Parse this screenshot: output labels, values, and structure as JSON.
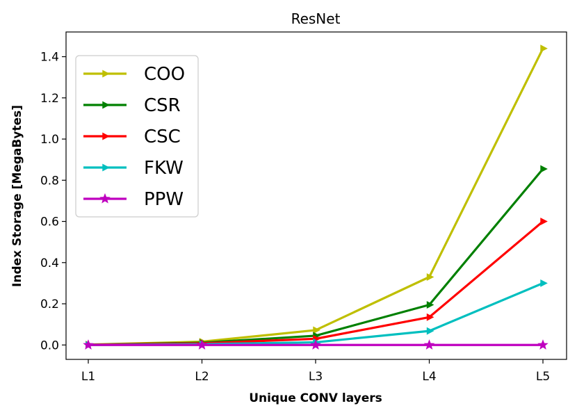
{
  "chart_data": {
    "type": "line",
    "title": "ResNet",
    "xlabel": "Unique CONV layers",
    "ylabel": "Index Storage [MegaBytes]",
    "categories": [
      "L1",
      "L2",
      "L3",
      "L4",
      "L5"
    ],
    "ylim": [
      -0.07,
      1.52
    ],
    "yticks": [
      0.0,
      0.2,
      0.4,
      0.6,
      0.8,
      1.0,
      1.2,
      1.4
    ],
    "ytick_labels": [
      "0.0",
      "0.2",
      "0.4",
      "0.6",
      "0.8",
      "1.0",
      "1.2",
      "1.4"
    ],
    "legend_position": "upper-left",
    "series": [
      {
        "name": "COO",
        "color": "#bfbf00",
        "marker": "triangle-right",
        "values": [
          0.002,
          0.016,
          0.072,
          0.33,
          1.44
        ]
      },
      {
        "name": "CSR",
        "color": "#008000",
        "marker": "triangle-right",
        "values": [
          0.001,
          0.011,
          0.045,
          0.195,
          0.855
        ]
      },
      {
        "name": "CSC",
        "color": "#ff0000",
        "marker": "triangle-right",
        "values": [
          0.001,
          0.008,
          0.03,
          0.135,
          0.6
        ]
      },
      {
        "name": "FKW",
        "color": "#00bfbf",
        "marker": "triangle-right",
        "values": [
          0.0,
          0.004,
          0.013,
          0.068,
          0.3
        ]
      },
      {
        "name": "PPW",
        "color": "#bf00bf",
        "marker": "star",
        "values": [
          0.0,
          0.0,
          0.0,
          0.0,
          0.0
        ]
      }
    ]
  }
}
